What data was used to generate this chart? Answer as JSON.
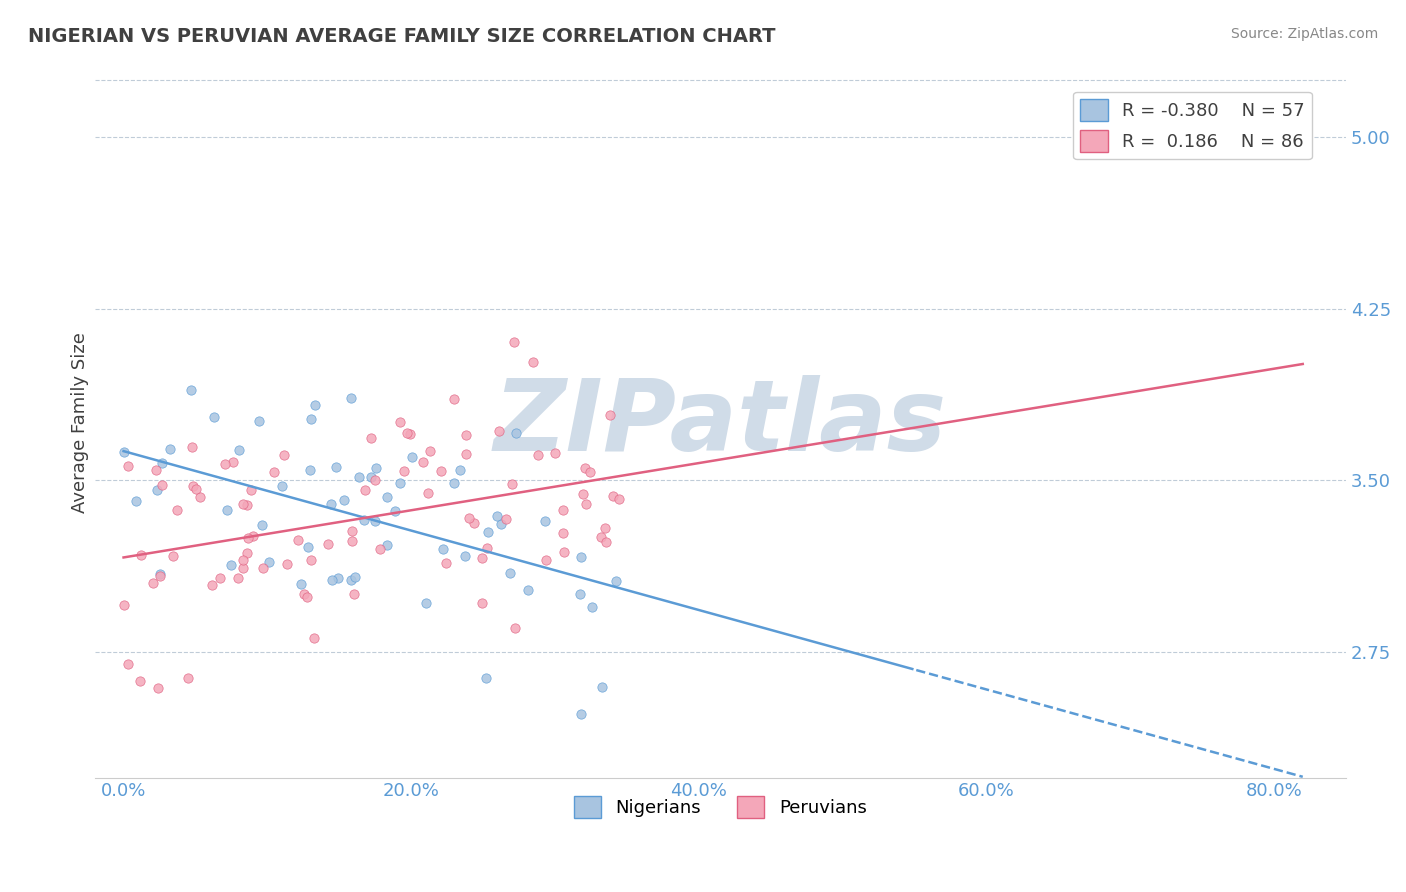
{
  "title": "NIGERIAN VS PERUVIAN AVERAGE FAMILY SIZE CORRELATION CHART",
  "source": "Source: ZipAtlas.com",
  "ylabel": "Average Family Size",
  "xlabel_ticks": [
    "0.0%",
    "20.0%",
    "40.0%",
    "60.0%",
    "80.0%"
  ],
  "xlabel_vals": [
    0.0,
    0.2,
    0.4,
    0.6,
    0.8
  ],
  "yticks": [
    2.75,
    3.5,
    4.25,
    5.0
  ],
  "ylim": [
    2.2,
    5.3
  ],
  "xlim": [
    -0.02,
    0.85
  ],
  "nigerians": {
    "R": -0.38,
    "N": 57,
    "color": "#a8c4e0",
    "line_color": "#5b9bd5",
    "label": "Nigerians"
  },
  "peruvians": {
    "R": 0.186,
    "N": 86,
    "color": "#f4a7b9",
    "line_color": "#e06080",
    "label": "Peruvians"
  },
  "watermark": "ZIPatlas",
  "watermark_color": "#d0dce8",
  "background_color": "#ffffff",
  "grid_color": "#c0ccd8",
  "title_color": "#404040",
  "axis_label_color": "#5b9bd5",
  "legend_text_color": "#404040",
  "legend_value_color": "#5b9bd5"
}
